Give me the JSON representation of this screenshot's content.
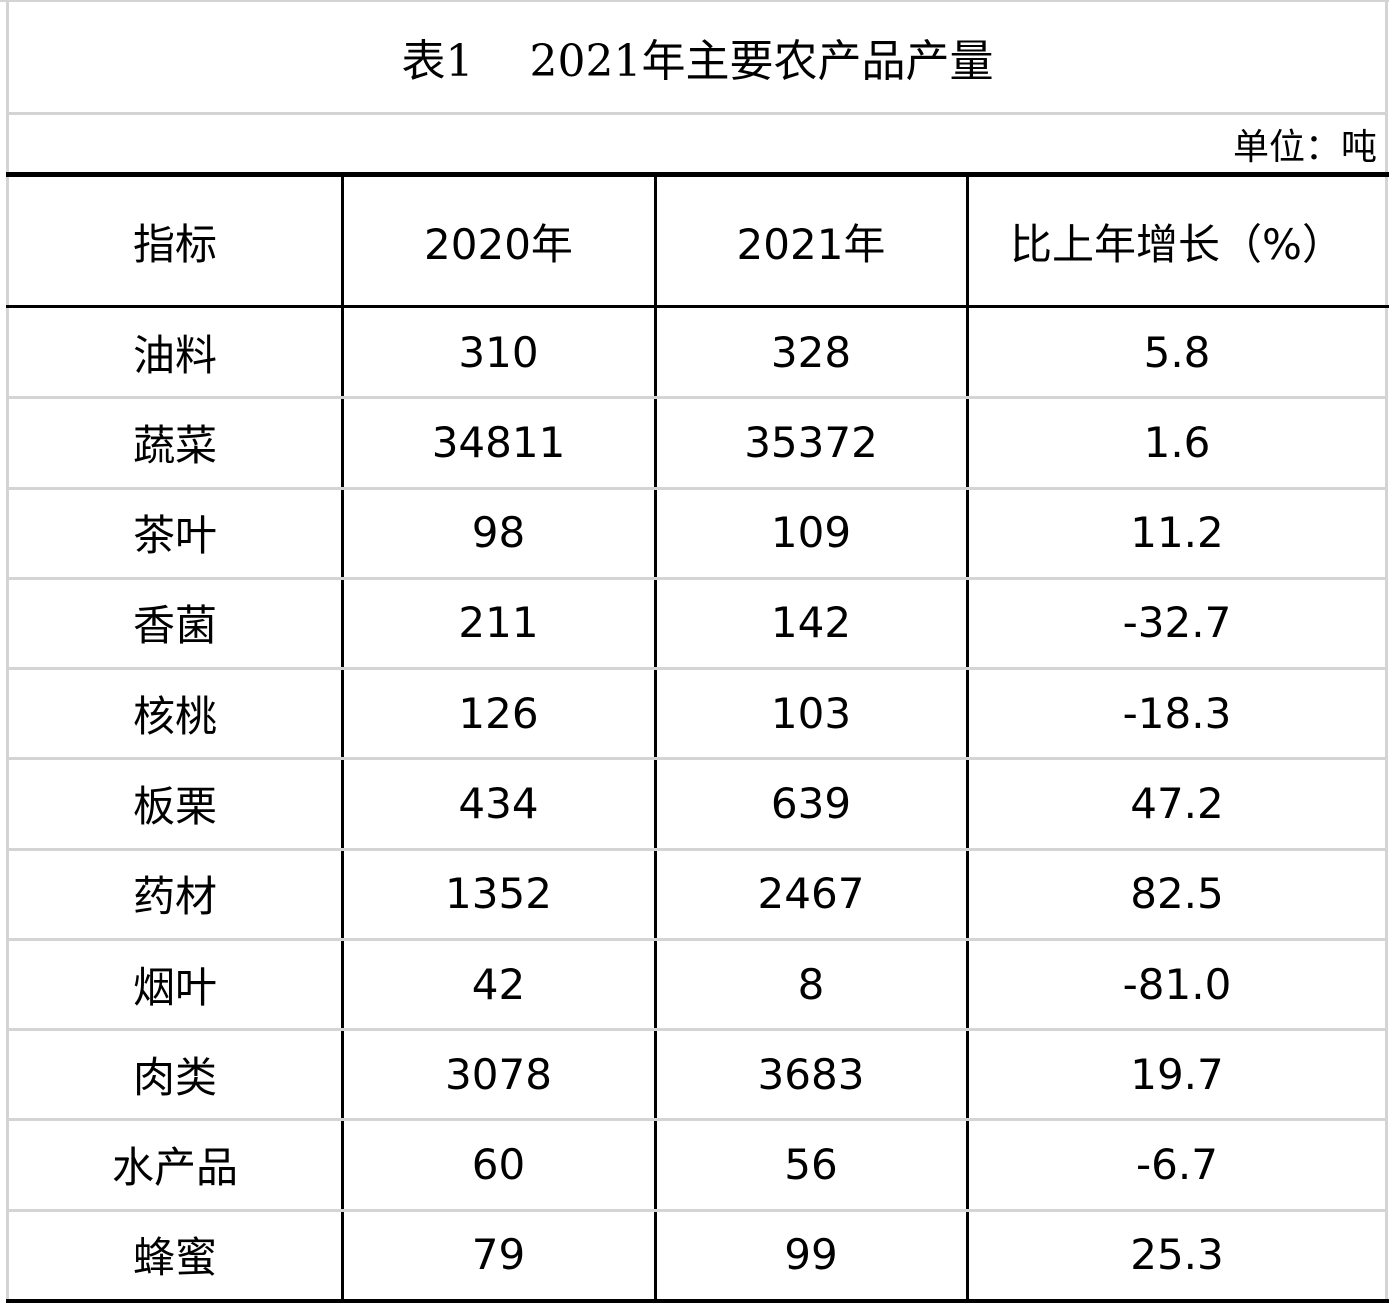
{
  "table": {
    "title": "表1    2021年主要农产品产量",
    "unit": "单位：吨",
    "header": [
      "指标",
      "2020年",
      "2021年",
      "比上年增长（%）"
    ],
    "rows": [
      [
        "油料",
        "310",
        "328",
        "5.8"
      ],
      [
        "蔬菜",
        "34811",
        "35372",
        "1.6"
      ],
      [
        "茶叶",
        "98",
        "109",
        "11.2"
      ],
      [
        "香菌",
        "211",
        "142",
        "-32.7"
      ],
      [
        "核桃",
        "126",
        "103",
        "-18.3"
      ],
      [
        "板栗",
        "434",
        "639",
        "47.2"
      ],
      [
        "药材",
        "1352",
        "2467",
        "82.5"
      ],
      [
        "烟叶",
        "42",
        "8",
        "-81.0"
      ],
      [
        "肉类",
        "3078",
        "3683",
        "19.7"
      ],
      [
        "水产品",
        "60",
        "56",
        "-6.7"
      ],
      [
        "蜂蜜",
        "79",
        "99",
        "25.3"
      ]
    ]
  }
}
